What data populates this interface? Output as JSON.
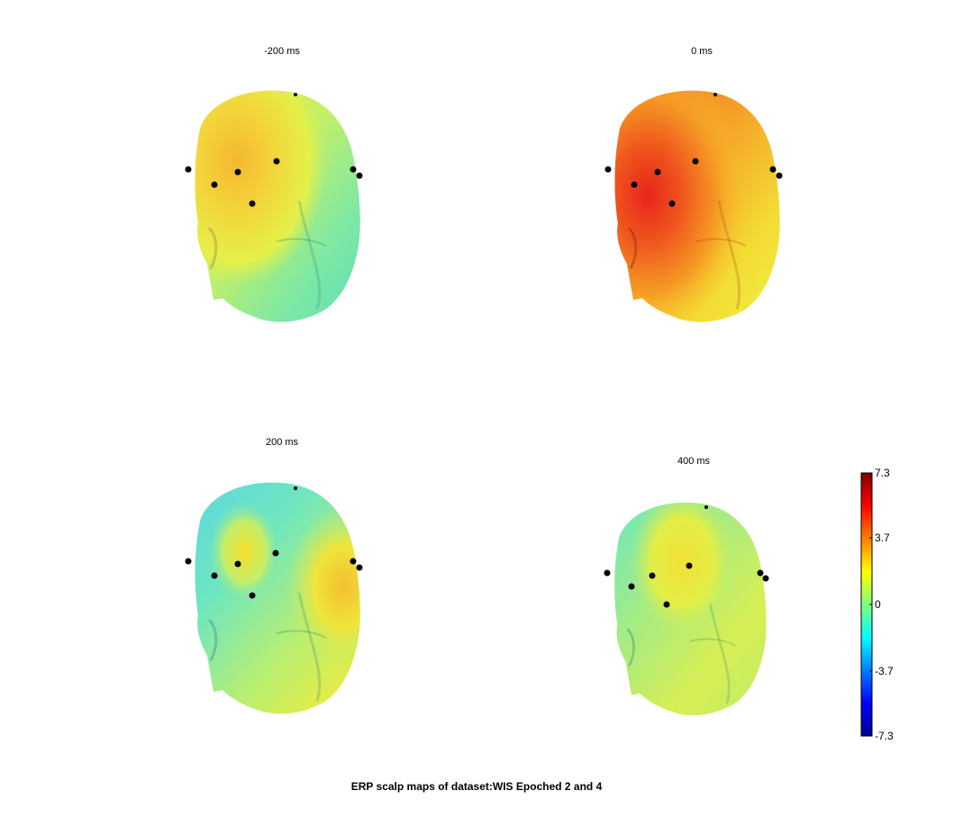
{
  "figure": {
    "title": "ERP scalp maps of dataset:WIS Epoched 2 and 4"
  },
  "chart_data": {
    "type": "heatmap",
    "description_kind": "3D scalp topography maps",
    "title": "ERP scalp maps of dataset:WIS Epoched 2 and 4",
    "panels": [
      {
        "label": "-200 ms",
        "time_ms": -200,
        "approx_value_frontal": 2.5,
        "approx_value_face": -1.5
      },
      {
        "label": "0 ms",
        "time_ms": 0,
        "approx_value_frontal": 6.5,
        "approx_value_face": 2.5
      },
      {
        "label": "200 ms",
        "time_ms": 200,
        "approx_value_frontal": 1.0,
        "approx_value_face": 1.5
      },
      {
        "label": "400 ms",
        "time_ms": 400,
        "approx_value_frontal": 2.5,
        "approx_value_face": 0.5
      }
    ],
    "colorbar": {
      "colormap": "jet",
      "min": -7.3,
      "max": 7.3,
      "ticks": [
        7.3,
        3.7,
        0,
        -3.7,
        -7.3
      ],
      "tick_labels": [
        "7.3",
        "3.7",
        "0",
        "-3.7",
        "-7.3"
      ]
    },
    "electrodes_per_panel": 8
  }
}
